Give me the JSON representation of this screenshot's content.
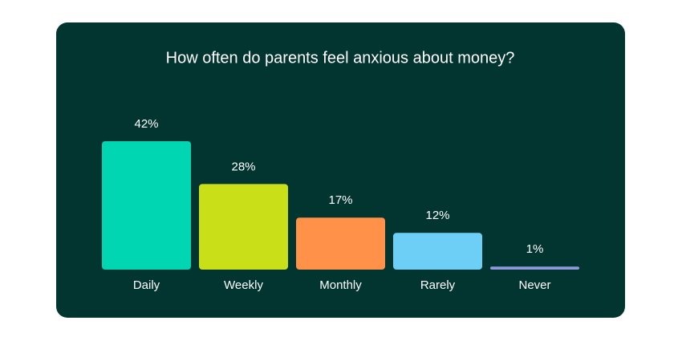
{
  "chart_data": {
    "type": "bar",
    "title": "How often do parents feel anxious about money?",
    "categories": [
      "Daily",
      "Weekly",
      "Monthly",
      "Rarely",
      "Never"
    ],
    "values": [
      42,
      28,
      17,
      12,
      1
    ],
    "value_labels": [
      "42%",
      "28%",
      "17%",
      "12%",
      "1%"
    ],
    "colors": [
      "#00d6b1",
      "#c9df17",
      "#ff9148",
      "#6dcff6",
      "#8e9ad8"
    ]
  }
}
